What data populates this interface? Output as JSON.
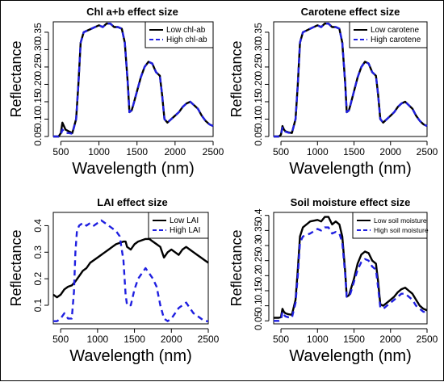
{
  "chart_data": [
    {
      "type": "line",
      "title": "Chl a+b effect size",
      "xlabel": "Wavelength (nm)",
      "ylabel": "Reflectance",
      "xlim": [
        400,
        2500
      ],
      "ylim": [
        0.05,
        0.38
      ],
      "xticks": [
        500,
        1000,
        1500,
        2000,
        2500
      ],
      "yticks": [
        0.05,
        0.1,
        0.15,
        0.2,
        0.25,
        0.3,
        0.35
      ],
      "ytick_labels": [
        "0.05",
        "0.10",
        "0.15",
        "0.20",
        "0.25",
        "0.30",
        "0.35"
      ],
      "legend_position": "top-right",
      "series": [
        {
          "name": "Low chl-ab",
          "color": "#000000",
          "dash": "solid",
          "x": [
            400,
            470,
            500,
            520,
            540,
            560,
            600,
            650,
            700,
            730,
            760,
            800,
            900,
            1000,
            1050,
            1100,
            1150,
            1200,
            1250,
            1300,
            1340,
            1380,
            1400,
            1430,
            1450,
            1500,
            1550,
            1600,
            1650,
            1700,
            1750,
            1800,
            1830,
            1860,
            1900,
            1950,
            2000,
            2050,
            2100,
            2150,
            2200,
            2250,
            2300,
            2350,
            2400,
            2450,
            2500
          ],
          "y": [
            0.05,
            0.05,
            0.06,
            0.09,
            0.08,
            0.07,
            0.065,
            0.06,
            0.1,
            0.2,
            0.32,
            0.35,
            0.36,
            0.37,
            0.365,
            0.375,
            0.375,
            0.365,
            0.365,
            0.36,
            0.32,
            0.2,
            0.12,
            0.125,
            0.14,
            0.18,
            0.22,
            0.25,
            0.265,
            0.26,
            0.235,
            0.225,
            0.17,
            0.1,
            0.09,
            0.1,
            0.11,
            0.12,
            0.135,
            0.145,
            0.15,
            0.14,
            0.13,
            0.11,
            0.095,
            0.085,
            0.08
          ]
        },
        {
          "name": "High chl-ab",
          "color": "#1f1fe0",
          "dash": "dashed",
          "x": [
            400,
            470,
            500,
            520,
            540,
            560,
            600,
            650,
            700,
            730,
            760,
            800,
            900,
            1000,
            1050,
            1100,
            1150,
            1200,
            1250,
            1300,
            1340,
            1380,
            1400,
            1430,
            1450,
            1500,
            1550,
            1600,
            1650,
            1700,
            1750,
            1800,
            1830,
            1860,
            1900,
            1950,
            2000,
            2050,
            2100,
            2150,
            2200,
            2250,
            2300,
            2350,
            2400,
            2450,
            2500
          ],
          "y": [
            0.05,
            0.05,
            0.055,
            0.07,
            0.065,
            0.06,
            0.06,
            0.058,
            0.1,
            0.2,
            0.32,
            0.35,
            0.36,
            0.37,
            0.365,
            0.375,
            0.375,
            0.365,
            0.365,
            0.36,
            0.32,
            0.2,
            0.12,
            0.125,
            0.14,
            0.18,
            0.22,
            0.25,
            0.265,
            0.26,
            0.235,
            0.225,
            0.17,
            0.1,
            0.09,
            0.1,
            0.11,
            0.12,
            0.135,
            0.145,
            0.15,
            0.14,
            0.13,
            0.11,
            0.095,
            0.085,
            0.08
          ]
        }
      ]
    },
    {
      "type": "line",
      "title": "Carotene effect size",
      "xlabel": "Wavelength (nm)",
      "ylabel": "Reflectance",
      "xlim": [
        400,
        2500
      ],
      "ylim": [
        0.05,
        0.38
      ],
      "xticks": [
        500,
        1000,
        1500,
        2000,
        2500
      ],
      "yticks": [
        0.05,
        0.1,
        0.15,
        0.2,
        0.25,
        0.3,
        0.35
      ],
      "ytick_labels": [
        "0.05",
        "0.10",
        "0.15",
        "0.20",
        "0.25",
        "0.30",
        "0.35"
      ],
      "legend_position": "top-right",
      "series": [
        {
          "name": "Low carotene",
          "color": "#000000",
          "dash": "solid",
          "x": [
            400,
            470,
            500,
            520,
            540,
            560,
            600,
            650,
            700,
            730,
            760,
            800,
            900,
            1000,
            1050,
            1100,
            1150,
            1200,
            1250,
            1300,
            1340,
            1380,
            1400,
            1430,
            1450,
            1500,
            1550,
            1600,
            1650,
            1700,
            1750,
            1800,
            1830,
            1860,
            1900,
            1950,
            2000,
            2050,
            2100,
            2150,
            2200,
            2250,
            2300,
            2350,
            2400,
            2450,
            2500
          ],
          "y": [
            0.05,
            0.05,
            0.055,
            0.08,
            0.07,
            0.065,
            0.062,
            0.06,
            0.1,
            0.2,
            0.32,
            0.35,
            0.36,
            0.37,
            0.365,
            0.375,
            0.375,
            0.365,
            0.365,
            0.36,
            0.32,
            0.2,
            0.12,
            0.125,
            0.14,
            0.18,
            0.22,
            0.25,
            0.265,
            0.26,
            0.235,
            0.225,
            0.17,
            0.1,
            0.09,
            0.1,
            0.11,
            0.12,
            0.135,
            0.145,
            0.15,
            0.14,
            0.13,
            0.11,
            0.095,
            0.085,
            0.08
          ]
        },
        {
          "name": "High carotene",
          "color": "#1f1fe0",
          "dash": "dashed",
          "x": [
            400,
            470,
            500,
            520,
            540,
            560,
            600,
            650,
            700,
            730,
            760,
            800,
            900,
            1000,
            1050,
            1100,
            1150,
            1200,
            1250,
            1300,
            1340,
            1380,
            1400,
            1430,
            1450,
            1500,
            1550,
            1600,
            1650,
            1700,
            1750,
            1800,
            1830,
            1860,
            1900,
            1950,
            2000,
            2050,
            2100,
            2150,
            2200,
            2250,
            2300,
            2350,
            2400,
            2450,
            2500
          ],
          "y": [
            0.05,
            0.05,
            0.055,
            0.075,
            0.068,
            0.064,
            0.061,
            0.06,
            0.1,
            0.2,
            0.32,
            0.35,
            0.36,
            0.37,
            0.365,
            0.375,
            0.375,
            0.365,
            0.365,
            0.36,
            0.32,
            0.2,
            0.12,
            0.125,
            0.14,
            0.18,
            0.22,
            0.25,
            0.265,
            0.26,
            0.235,
            0.225,
            0.17,
            0.1,
            0.09,
            0.1,
            0.11,
            0.12,
            0.135,
            0.145,
            0.15,
            0.14,
            0.13,
            0.11,
            0.095,
            0.085,
            0.08
          ]
        }
      ]
    },
    {
      "type": "line",
      "title": "LAI effect size",
      "xlabel": "Wavelength (nm)",
      "ylabel": "Reflectance",
      "xlim": [
        400,
        2500
      ],
      "ylim": [
        0.03,
        0.45
      ],
      "xticks": [
        500,
        1000,
        1500,
        2000,
        2500
      ],
      "yticks": [
        0.1,
        0.2,
        0.3,
        0.4
      ],
      "ytick_labels": [
        "0.1",
        "0.2",
        "0.3",
        "0.4"
      ],
      "legend_position": "top-right",
      "series": [
        {
          "name": "Low LAI",
          "color": "#000000",
          "dash": "solid",
          "x": [
            400,
            450,
            500,
            550,
            600,
            650,
            700,
            750,
            800,
            850,
            900,
            1000,
            1050,
            1100,
            1150,
            1200,
            1250,
            1300,
            1350,
            1380,
            1400,
            1450,
            1500,
            1550,
            1600,
            1650,
            1700,
            1750,
            1800,
            1850,
            1900,
            1950,
            2000,
            2050,
            2100,
            2150,
            2200,
            2250,
            2300,
            2350,
            2400,
            2450,
            2500
          ],
          "y": [
            0.14,
            0.13,
            0.14,
            0.16,
            0.17,
            0.175,
            0.19,
            0.21,
            0.23,
            0.24,
            0.26,
            0.28,
            0.29,
            0.3,
            0.31,
            0.32,
            0.33,
            0.335,
            0.34,
            0.34,
            0.32,
            0.31,
            0.33,
            0.34,
            0.345,
            0.35,
            0.35,
            0.34,
            0.33,
            0.32,
            0.28,
            0.3,
            0.31,
            0.3,
            0.29,
            0.31,
            0.32,
            0.31,
            0.3,
            0.29,
            0.28,
            0.27,
            0.26
          ]
        },
        {
          "name": "High LAI",
          "color": "#1f1fe0",
          "dash": "dashed",
          "x": [
            400,
            450,
            500,
            550,
            600,
            650,
            680,
            700,
            720,
            750,
            800,
            850,
            900,
            950,
            1000,
            1050,
            1100,
            1150,
            1200,
            1250,
            1300,
            1350,
            1380,
            1400,
            1450,
            1500,
            1550,
            1600,
            1650,
            1700,
            1750,
            1800,
            1850,
            1900,
            1950,
            2000,
            2050,
            2100,
            2150,
            2200,
            2250,
            2300,
            2350,
            2400,
            2450,
            2500
          ],
          "y": [
            0.04,
            0.04,
            0.05,
            0.07,
            0.05,
            0.05,
            0.15,
            0.3,
            0.38,
            0.4,
            0.41,
            0.4,
            0.41,
            0.4,
            0.41,
            0.42,
            0.41,
            0.4,
            0.39,
            0.38,
            0.36,
            0.27,
            0.14,
            0.1,
            0.1,
            0.16,
            0.2,
            0.22,
            0.24,
            0.22,
            0.2,
            0.17,
            0.1,
            0.05,
            0.04,
            0.05,
            0.07,
            0.09,
            0.1,
            0.11,
            0.09,
            0.07,
            0.06,
            0.05,
            0.04,
            0.04
          ]
        }
      ]
    },
    {
      "type": "line",
      "title": "Soil moisture effect size",
      "xlabel": "Wavelength (nm)",
      "ylabel": "Reflectance",
      "xlim": [
        400,
        2500
      ],
      "ylim": [
        0.04,
        0.41
      ],
      "xticks": [
        500,
        1000,
        1500,
        2000,
        2500
      ],
      "yticks": [
        0.05,
        0.1,
        0.15,
        0.2,
        0.25,
        0.3,
        0.35,
        0.4
      ],
      "ytick_labels": [
        "0.05",
        "0.1",
        "0.15",
        "0.2",
        "0.25",
        "0.3",
        "0.35",
        "0.4"
      ],
      "legend_position": "top-right",
      "series": [
        {
          "name": "Low soil moisture",
          "color": "#000000",
          "dash": "solid",
          "x": [
            400,
            470,
            500,
            520,
            540,
            560,
            600,
            650,
            700,
            730,
            760,
            800,
            900,
            1000,
            1050,
            1100,
            1150,
            1200,
            1250,
            1300,
            1340,
            1380,
            1400,
            1430,
            1450,
            1500,
            1550,
            1600,
            1650,
            1700,
            1750,
            1800,
            1830,
            1860,
            1900,
            1950,
            2000,
            2050,
            2100,
            2150,
            2200,
            2250,
            2300,
            2350,
            2400,
            2450,
            2500
          ],
          "y": [
            0.06,
            0.06,
            0.062,
            0.09,
            0.08,
            0.075,
            0.072,
            0.07,
            0.12,
            0.22,
            0.33,
            0.36,
            0.38,
            0.385,
            0.38,
            0.395,
            0.395,
            0.37,
            0.38,
            0.37,
            0.33,
            0.21,
            0.13,
            0.135,
            0.15,
            0.19,
            0.24,
            0.27,
            0.28,
            0.275,
            0.25,
            0.24,
            0.18,
            0.105,
            0.1,
            0.11,
            0.12,
            0.13,
            0.145,
            0.155,
            0.16,
            0.15,
            0.14,
            0.12,
            0.1,
            0.09,
            0.085
          ]
        },
        {
          "name": "High soil moisture",
          "color": "#1f1fe0",
          "dash": "dashed",
          "x": [
            400,
            470,
            500,
            520,
            540,
            560,
            600,
            650,
            700,
            730,
            760,
            800,
            900,
            1000,
            1050,
            1100,
            1150,
            1200,
            1250,
            1300,
            1340,
            1380,
            1400,
            1430,
            1450,
            1500,
            1550,
            1600,
            1650,
            1700,
            1750,
            1800,
            1830,
            1860,
            1900,
            1950,
            2000,
            2050,
            2100,
            2150,
            2200,
            2250,
            2300,
            2350,
            2400,
            2450,
            2500
          ],
          "y": [
            0.05,
            0.05,
            0.052,
            0.08,
            0.07,
            0.065,
            0.062,
            0.06,
            0.11,
            0.2,
            0.31,
            0.33,
            0.34,
            0.355,
            0.35,
            0.36,
            0.36,
            0.34,
            0.345,
            0.34,
            0.31,
            0.2,
            0.13,
            0.13,
            0.14,
            0.18,
            0.22,
            0.245,
            0.255,
            0.25,
            0.23,
            0.22,
            0.16,
            0.095,
            0.09,
            0.1,
            0.11,
            0.12,
            0.13,
            0.14,
            0.14,
            0.13,
            0.12,
            0.1,
            0.09,
            0.08,
            0.08
          ]
        }
      ]
    }
  ]
}
